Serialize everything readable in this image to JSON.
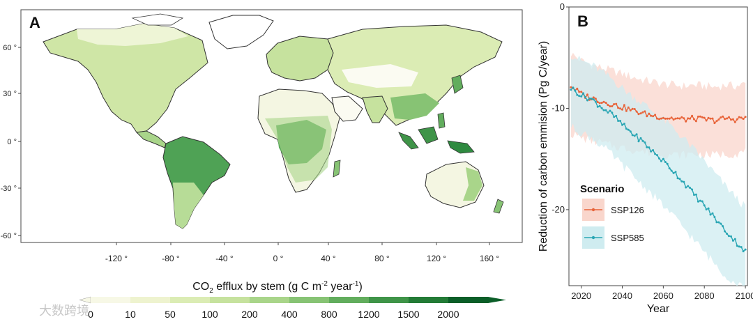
{
  "panel_a": {
    "letter": "A",
    "lat_ticks": [
      "60 °",
      "30 °",
      "0 °",
      "-30 °",
      "-60 °"
    ],
    "lon_ticks": [
      "-120 °",
      "-80 °",
      "-40 °",
      "0 °",
      "40 °",
      "80 °",
      "120 °",
      "160 °"
    ],
    "colorbar": {
      "title": "CO2 efflux by stem (g C m-2 year-1)",
      "title_prefix": "CO",
      "title_sub": "2",
      "title_mid": " efflux by stem (g C m",
      "title_sup": "-2",
      "title_mid2": " year",
      "title_sup2": "-1",
      "title_end": ")",
      "labels": [
        "0",
        "10",
        "50",
        "100",
        "200",
        "400",
        "800",
        "1200",
        "1500",
        "2000"
      ],
      "colors": [
        "#f7f8e6",
        "#eef3cf",
        "#dbecb4",
        "#c6e29e",
        "#a9d58a",
        "#87c374",
        "#62ad5d",
        "#3f9448",
        "#237b36",
        "#0b5e28"
      ]
    },
    "watermark": "大数跨境"
  },
  "chart_data": {
    "type": "line",
    "panel_letter": "B",
    "xlabel": "Year",
    "ylabel": "Reduction of carbon emmision  (Pg C/year)",
    "xlim": [
      2014,
      2101
    ],
    "ylim": [
      -27.5,
      0
    ],
    "x_ticks": [
      2020,
      2040,
      2060,
      2080,
      2100
    ],
    "y_ticks": [
      0,
      -10,
      -20
    ],
    "legend_title": "Scenario",
    "legend_position": "bottom-left",
    "grid": false,
    "series": [
      {
        "name": "SSP126",
        "color": "#e8643a",
        "band_color": "#f9d6cc",
        "x": [
          2015,
          2020,
          2025,
          2030,
          2035,
          2040,
          2045,
          2050,
          2055,
          2060,
          2065,
          2070,
          2075,
          2080,
          2085,
          2090,
          2095,
          2100
        ],
        "values": [
          -7.8,
          -8.6,
          -9.0,
          -9.3,
          -9.6,
          -9.9,
          -10.2,
          -10.5,
          -10.7,
          -10.9,
          -11.0,
          -11.1,
          -11.0,
          -11.1,
          -11.2,
          -11.0,
          -11.1,
          -10.9
        ],
        "band_low": [
          -12.5,
          -12.9,
          -13.2,
          -13.4,
          -13.7,
          -13.9,
          -14.1,
          -14.3,
          -14.4,
          -14.5,
          -14.6,
          -14.6,
          -14.5,
          -14.6,
          -14.6,
          -14.5,
          -14.5,
          -14.3
        ],
        "band_high": [
          -4.6,
          -5.3,
          -5.7,
          -6.0,
          -6.3,
          -6.6,
          -6.9,
          -7.2,
          -7.4,
          -7.6,
          -7.7,
          -7.8,
          -7.7,
          -7.8,
          -7.9,
          -7.7,
          -7.8,
          -7.6
        ]
      },
      {
        "name": "SSP585",
        "color": "#2aa6b4",
        "band_color": "#cfecf0",
        "x": [
          2015,
          2020,
          2025,
          2030,
          2035,
          2040,
          2045,
          2050,
          2055,
          2060,
          2065,
          2070,
          2075,
          2080,
          2085,
          2090,
          2095,
          2100
        ],
        "values": [
          -8.0,
          -8.7,
          -9.1,
          -9.9,
          -10.6,
          -11.6,
          -12.5,
          -13.3,
          -14.3,
          -15.2,
          -16.2,
          -17.3,
          -18.5,
          -19.6,
          -20.8,
          -22.0,
          -23.1,
          -24.1
        ],
        "band_low": [
          -11.8,
          -12.4,
          -12.9,
          -13.7,
          -14.6,
          -15.6,
          -16.6,
          -17.6,
          -18.6,
          -19.6,
          -20.7,
          -21.8,
          -23.0,
          -24.2,
          -25.3,
          -26.4,
          -27.2,
          -27.5
        ],
        "band_high": [
          -4.7,
          -5.3,
          -5.7,
          -6.4,
          -7.1,
          -8.0,
          -8.8,
          -9.5,
          -10.3,
          -11.1,
          -12.0,
          -13.0,
          -14.1,
          -15.2,
          -16.4,
          -17.6,
          -18.7,
          -19.8
        ]
      }
    ]
  }
}
